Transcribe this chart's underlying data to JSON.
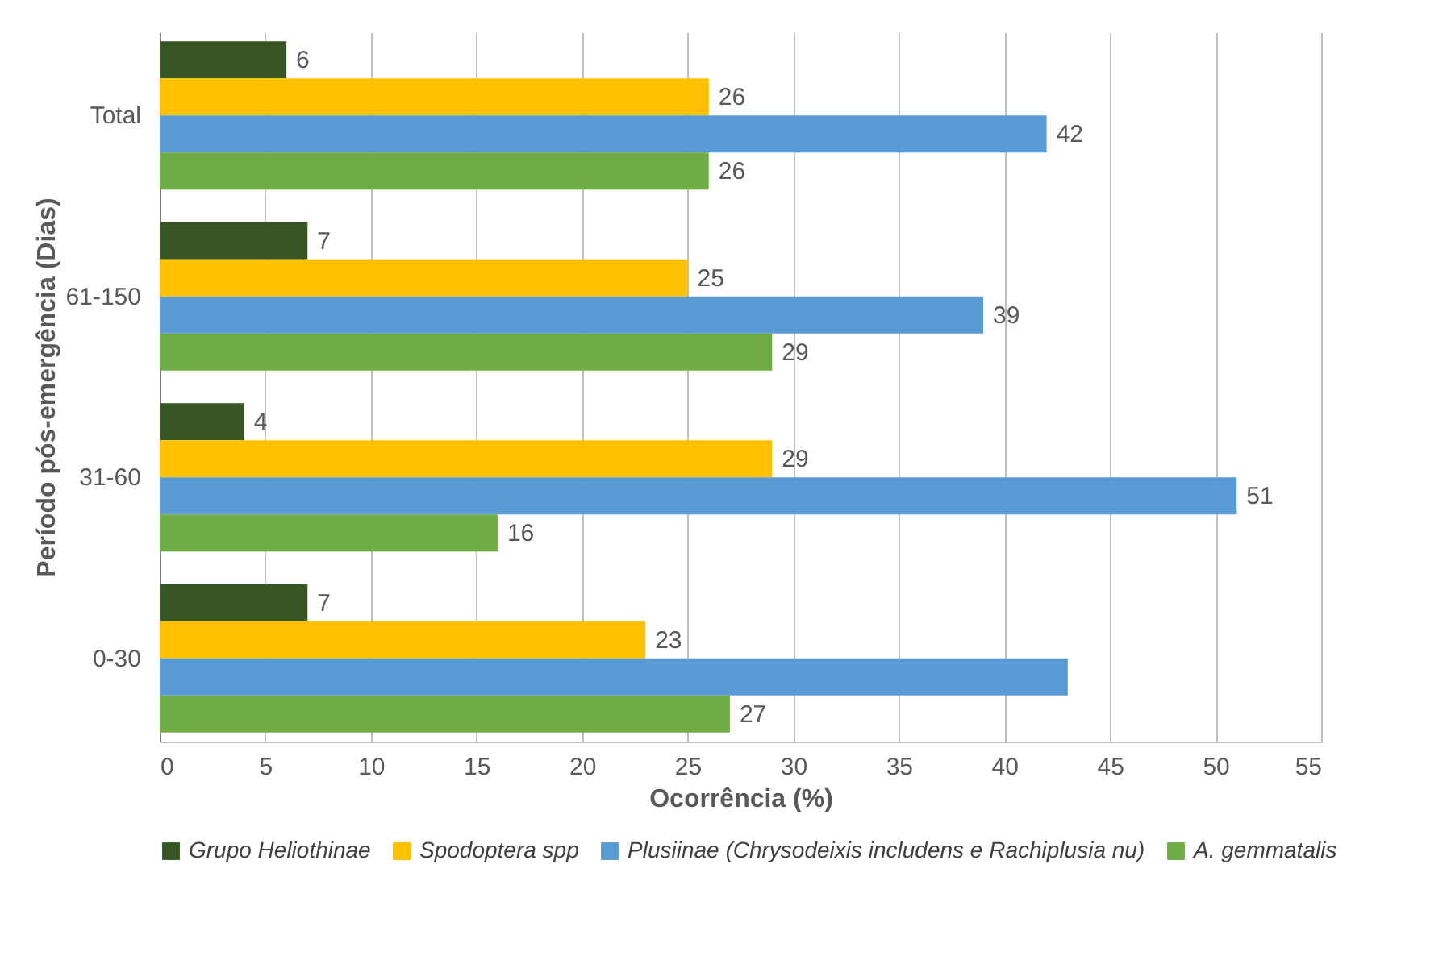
{
  "chart_data": {
    "type": "bar",
    "orientation": "horizontal",
    "xlabel": "Ocorrência (%)",
    "ylabel": "Período pós-emergência (Dias)",
    "categories": [
      "Total",
      "61-150",
      "31-60",
      "0-30"
    ],
    "series": [
      {
        "name": "Grupo Heliothinae",
        "color": "#375623",
        "values": [
          6,
          7,
          4,
          7
        ],
        "value_labels": [
          "6",
          "7",
          "4",
          "7"
        ]
      },
      {
        "name": "Spodoptera spp",
        "color": "#ffc000",
        "values": [
          26,
          25,
          29,
          23
        ],
        "value_labels": [
          "26",
          "25",
          "29",
          "23"
        ]
      },
      {
        "name": "Plusiinae (Chrysodeixis includens e Rachiplusia nu)",
        "color": "#5b9bd5",
        "values": [
          42,
          39,
          51,
          43
        ],
        "value_labels": [
          "42",
          "39",
          "51",
          null
        ]
      },
      {
        "name": "A. gemmatalis",
        "color": "#70ad47",
        "values": [
          26,
          29,
          16,
          27
        ],
        "value_labels": [
          "26",
          "29",
          "16",
          "27"
        ]
      }
    ],
    "xlim": [
      0,
      55
    ],
    "xticks": [
      0,
      5,
      10,
      15,
      20,
      25,
      30,
      35,
      40,
      45,
      50,
      55
    ],
    "grid": "x",
    "legend": "bottom"
  }
}
